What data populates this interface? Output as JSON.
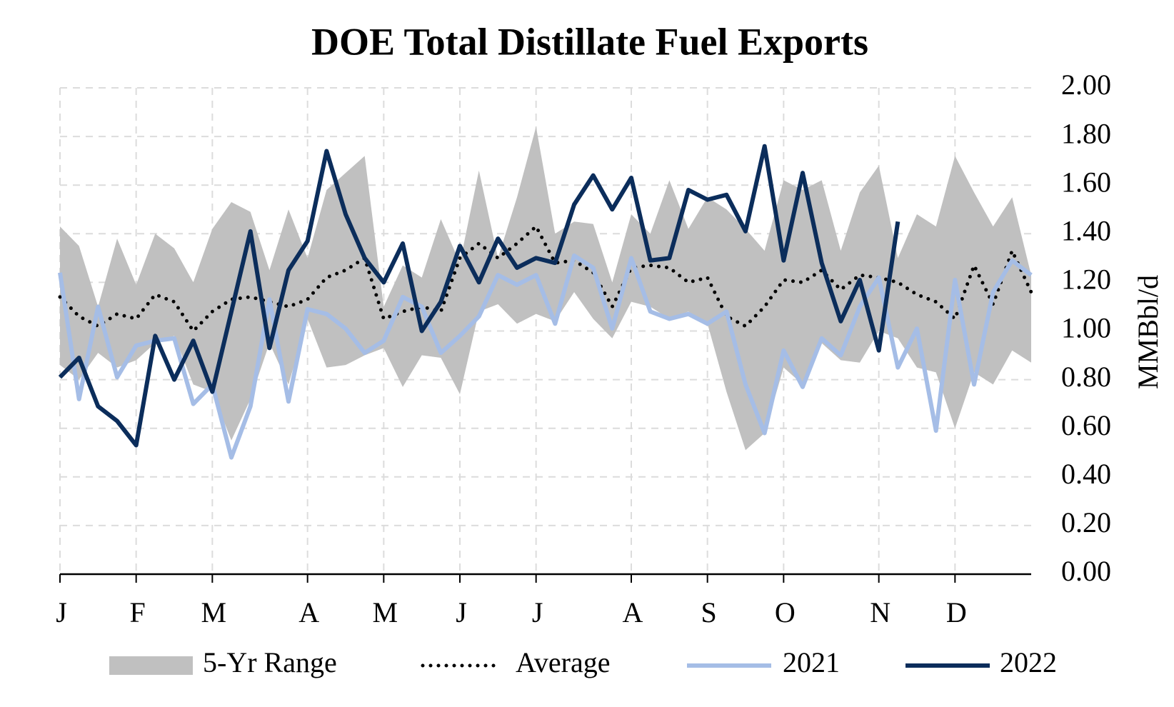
{
  "chart_data": {
    "type": "line",
    "title": "DOE Total Distillate Fuel Exports",
    "y_axis_label": "MMBbl/d",
    "categories": [
      "J",
      null,
      null,
      null,
      "F",
      null,
      null,
      null,
      "M",
      null,
      null,
      null,
      null,
      "A",
      null,
      null,
      null,
      "M",
      null,
      null,
      null,
      "J",
      null,
      null,
      null,
      "J",
      null,
      null,
      null,
      null,
      "A",
      null,
      null,
      null,
      "S",
      null,
      null,
      null,
      "O",
      null,
      null,
      null,
      null,
      "N",
      null,
      null,
      null,
      "D",
      null,
      null,
      null,
      null
    ],
    "range": {
      "name": "5-Yr Range",
      "color": "#c0c0c0",
      "high": [
        1.43,
        1.35,
        1.1,
        1.38,
        1.19,
        1.4,
        1.34,
        1.2,
        1.42,
        1.53,
        1.49,
        1.25,
        1.5,
        1.3,
        1.58,
        1.65,
        1.72,
        1.1,
        1.27,
        1.22,
        1.46,
        1.28,
        1.66,
        1.3,
        1.55,
        1.84,
        1.4,
        1.45,
        1.44,
        1.2,
        1.48,
        1.4,
        1.62,
        1.42,
        1.55,
        1.5,
        1.42,
        1.33,
        1.62,
        1.58,
        1.62,
        1.33,
        1.57,
        1.68,
        1.3,
        1.48,
        1.43,
        1.72,
        1.57,
        1.43,
        1.55,
        1.23
      ],
      "low": [
        0.86,
        0.8,
        0.91,
        0.85,
        0.88,
        0.95,
        0.98,
        0.78,
        0.75,
        0.55,
        0.72,
        0.95,
        0.78,
        1.05,
        0.85,
        0.86,
        0.9,
        0.93,
        0.77,
        0.9,
        0.89,
        0.74,
        1.08,
        1.11,
        1.03,
        1.07,
        1.04,
        1.16,
        1.05,
        0.97,
        1.12,
        1.1,
        1.05,
        1.08,
        1.03,
        0.75,
        0.51,
        0.58,
        0.85,
        0.78,
        0.95,
        0.88,
        0.87,
        1.0,
        0.97,
        0.85,
        0.83,
        0.6,
        0.83,
        0.78,
        0.92,
        0.87
      ]
    },
    "series": [
      {
        "name": "Average",
        "color": "#000000",
        "dash": "dotted",
        "values": [
          1.14,
          1.06,
          1.02,
          1.07,
          1.05,
          1.15,
          1.12,
          1.0,
          1.08,
          1.13,
          1.14,
          1.12,
          1.1,
          1.13,
          1.22,
          1.25,
          1.3,
          1.05,
          1.08,
          1.1,
          1.08,
          1.3,
          1.36,
          1.3,
          1.36,
          1.43,
          1.28,
          1.29,
          1.24,
          1.1,
          1.26,
          1.27,
          1.26,
          1.2,
          1.22,
          1.06,
          1.02,
          1.1,
          1.21,
          1.2,
          1.25,
          1.17,
          1.23,
          1.22,
          1.2,
          1.15,
          1.12,
          1.05,
          1.27,
          1.11,
          1.33,
          1.16
        ]
      },
      {
        "name": "2021",
        "color": "#a5bde6",
        "dash": "solid",
        "values": [
          1.24,
          0.72,
          1.1,
          0.81,
          0.94,
          0.96,
          0.97,
          0.7,
          0.78,
          0.48,
          0.69,
          1.13,
          0.71,
          1.09,
          1.07,
          1.01,
          0.91,
          0.96,
          1.14,
          1.1,
          0.91,
          0.98,
          1.06,
          1.23,
          1.19,
          1.23,
          1.03,
          1.31,
          1.26,
          1.01,
          1.3,
          1.08,
          1.05,
          1.07,
          1.03,
          1.08,
          0.78,
          0.58,
          0.92,
          0.77,
          0.97,
          0.9,
          1.1,
          1.22,
          0.85,
          1.01,
          0.59,
          1.21,
          0.78,
          1.16,
          1.29,
          1.23
        ]
      },
      {
        "name": "2022",
        "color": "#0b2d5b",
        "dash": "solid",
        "values": [
          0.81,
          0.89,
          0.69,
          0.63,
          0.53,
          0.98,
          0.8,
          0.96,
          0.75,
          1.08,
          1.41,
          0.93,
          1.25,
          1.37,
          1.74,
          1.48,
          1.3,
          1.2,
          1.36,
          1.0,
          1.12,
          1.35,
          1.2,
          1.38,
          1.26,
          1.3,
          1.28,
          1.52,
          1.64,
          1.5,
          1.63,
          1.29,
          1.3,
          1.58,
          1.54,
          1.56,
          1.41,
          1.76,
          1.29,
          1.65,
          1.28,
          1.04,
          1.21,
          0.92,
          1.45,
          null,
          null,
          null,
          null,
          null,
          null,
          null
        ]
      }
    ],
    "ylim": [
      0,
      2
    ],
    "yticks": [
      {
        "value": 0,
        "label": "0.00"
      },
      {
        "value": 0.2,
        "label": "0.20"
      },
      {
        "value": 0.4,
        "label": "0.40"
      },
      {
        "value": 0.6,
        "label": "0.60"
      },
      {
        "value": 0.8,
        "label": "0.80"
      },
      {
        "value": 1,
        "label": "1.00"
      },
      {
        "value": 1.2,
        "label": "1.20"
      },
      {
        "value": 1.4,
        "label": "1.40"
      },
      {
        "value": 1.6,
        "label": "1.60"
      },
      {
        "value": 1.8,
        "label": "1.80"
      },
      {
        "value": 2,
        "label": "2.00"
      }
    ],
    "grid": true,
    "legend": "bottom"
  }
}
